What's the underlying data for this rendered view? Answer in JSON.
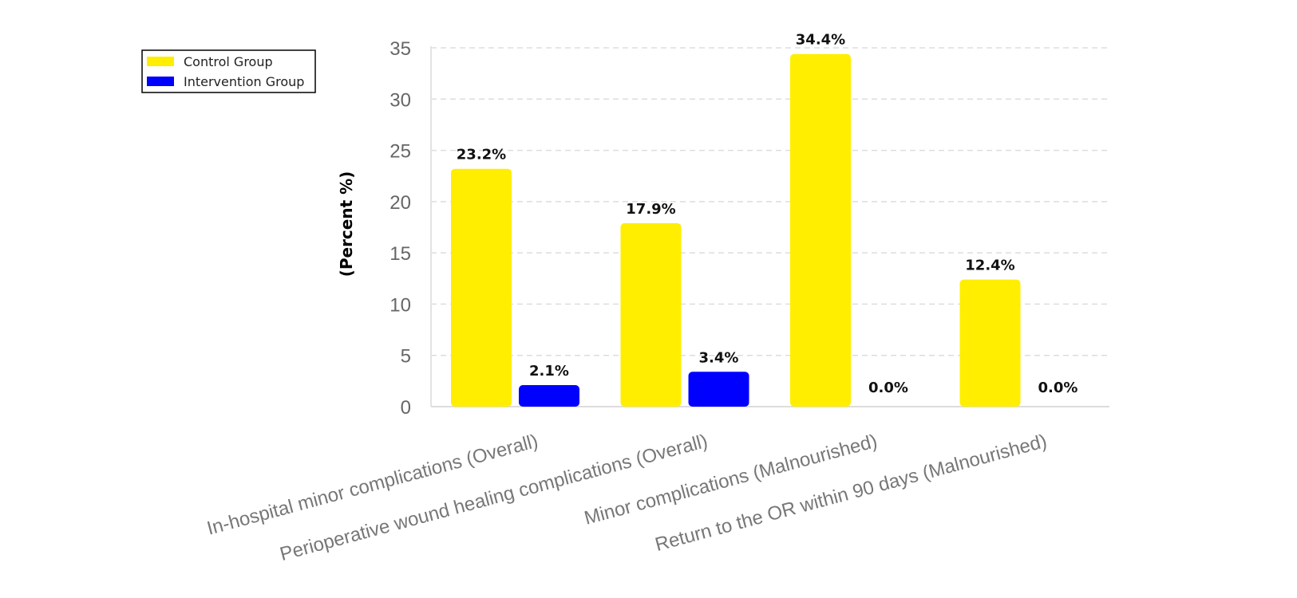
{
  "chart_data": {
    "type": "bar",
    "title": "",
    "xlabel": "",
    "ylabel": "(Percent %)",
    "ylim": [
      0,
      35
    ],
    "yticks": [
      0,
      5,
      10,
      15,
      20,
      25,
      30,
      35
    ],
    "grid": true,
    "legend_position": "top-left",
    "categories": [
      "In-hospital minor complications (Overall)",
      "Perioperative wound healing complications (Overall)",
      "Minor complications (Malnourished)",
      "Return to the OR within 90 days (Malnourished)"
    ],
    "series": [
      {
        "name": "Control Group",
        "color": "#ffee00",
        "values": [
          23.2,
          17.9,
          34.4,
          12.4
        ],
        "labels": [
          "23.2%",
          "17.9%",
          "34.4%",
          "12.4%"
        ]
      },
      {
        "name": "Intervention Group",
        "color": "#0000ff",
        "values": [
          2.1,
          3.4,
          0.0,
          0.0
        ],
        "labels": [
          "2.1%",
          "3.4%",
          "0.0%",
          "0.0%"
        ]
      }
    ]
  }
}
